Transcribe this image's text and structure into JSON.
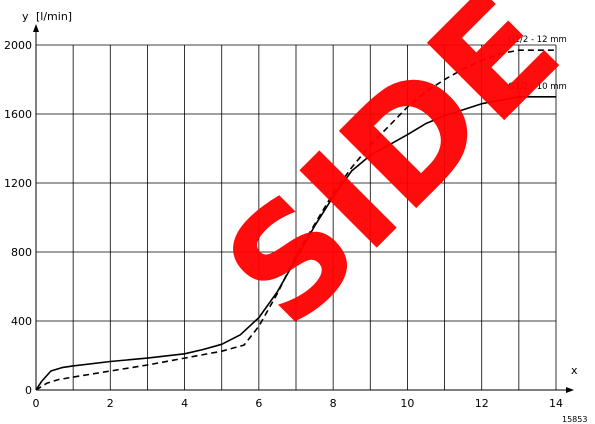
{
  "chart_data": {
    "type": "line",
    "title": "",
    "xlabel": "x",
    "ylabel": "y",
    "yunit": "[l/min]",
    "xlim": [
      0,
      14
    ],
    "ylim": [
      0,
      2000
    ],
    "x_ticks": [
      0,
      2,
      4,
      6,
      8,
      10,
      12,
      14
    ],
    "y_ticks": [
      0,
      400,
      800,
      1200,
      1600,
      2000
    ],
    "grid": true,
    "series": [
      {
        "name": "G1/2 - 12 mm",
        "style": "dashed",
        "points": [
          [
            0,
            0
          ],
          [
            0.3,
            40
          ],
          [
            0.6,
            60
          ],
          [
            1,
            75
          ],
          [
            2,
            110
          ],
          [
            3,
            145
          ],
          [
            4,
            185
          ],
          [
            5,
            225
          ],
          [
            5.6,
            260
          ],
          [
            6,
            370
          ],
          [
            6.5,
            560
          ],
          [
            7,
            780
          ],
          [
            7.5,
            960
          ],
          [
            8,
            1140
          ],
          [
            8.5,
            1290
          ],
          [
            9,
            1420
          ],
          [
            9.5,
            1530
          ],
          [
            10,
            1640
          ],
          [
            10.5,
            1730
          ],
          [
            11,
            1800
          ],
          [
            11.5,
            1860
          ],
          [
            12,
            1910
          ],
          [
            12.5,
            1950
          ],
          [
            13,
            1970
          ],
          [
            14,
            1970
          ]
        ]
      },
      {
        "name": "G1/2 - 10 mm",
        "style": "solid",
        "points": [
          [
            0,
            0
          ],
          [
            0.15,
            50
          ],
          [
            0.4,
            110
          ],
          [
            0.7,
            130
          ],
          [
            1,
            140
          ],
          [
            2,
            165
          ],
          [
            3,
            185
          ],
          [
            4,
            210
          ],
          [
            4.5,
            235
          ],
          [
            5,
            265
          ],
          [
            5.5,
            320
          ],
          [
            6,
            420
          ],
          [
            6.5,
            570
          ],
          [
            7,
            760
          ],
          [
            7.5,
            950
          ],
          [
            8,
            1120
          ],
          [
            8.5,
            1270
          ],
          [
            9,
            1360
          ],
          [
            10,
            1480
          ],
          [
            10.5,
            1545
          ],
          [
            11,
            1590
          ],
          [
            12,
            1660
          ],
          [
            13,
            1700
          ],
          [
            14,
            1700
          ]
        ]
      }
    ]
  },
  "figure_id": "15853",
  "watermark": "SIDE"
}
